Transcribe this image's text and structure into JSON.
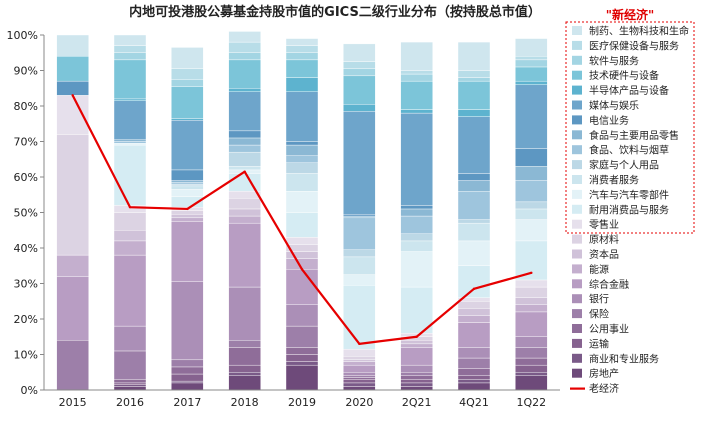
{
  "chart_data": {
    "type": "bar",
    "stacked": true,
    "title": "内地可投港股公募基金持股市值的GICS二级行业分布（按持股总市值）",
    "categories": [
      "2015",
      "2016",
      "2017",
      "2018",
      "2019",
      "2020",
      "2Q21",
      "4Q21",
      "1Q22"
    ],
    "ylim": [
      0,
      100
    ],
    "yticks": [
      "0%",
      "10%",
      "20%",
      "30%",
      "40%",
      "50%",
      "60%",
      "70%",
      "80%",
      "90%",
      "100%"
    ],
    "grid": false,
    "legend_position": "right",
    "highlight_label": "\"新经济\"",
    "series": [
      {
        "name": "房地产",
        "color": "#6e4a7a",
        "values": [
          0,
          1,
          2,
          4,
          7,
          1,
          1,
          2,
          4
        ]
      },
      {
        "name": "商业和专业服务",
        "color": "#7a5a88",
        "values": [
          0,
          0.5,
          0.5,
          1,
          1,
          1,
          1,
          1,
          1
        ]
      },
      {
        "name": "运输",
        "color": "#86628f",
        "values": [
          0,
          0.5,
          2,
          2,
          2,
          1,
          1,
          1,
          2
        ]
      },
      {
        "name": "公用事业",
        "color": "#8f6d99",
        "values": [
          0,
          1,
          2,
          5,
          2,
          0.5,
          1,
          2,
          2
        ]
      },
      {
        "name": "保险",
        "color": "#9d7fa9",
        "values": [
          14,
          8,
          2,
          2,
          6,
          0.5,
          1,
          3,
          3
        ]
      },
      {
        "name": "银行",
        "color": "#ab8fb7",
        "values": [
          0,
          7,
          22,
          15,
          6,
          1,
          2,
          3,
          3
        ]
      },
      {
        "name": "综合金融",
        "color": "#b89dc3",
        "values": [
          18,
          20,
          17,
          18,
          10,
          2,
          5,
          7,
          7
        ]
      },
      {
        "name": "能源",
        "color": "#c4afce",
        "values": [
          6,
          4,
          1,
          2,
          3,
          1,
          1,
          2,
          2
        ]
      },
      {
        "name": "资本品",
        "color": "#d0c2d9",
        "values": [
          0,
          3,
          1,
          2,
          2,
          0.5,
          1,
          2,
          2
        ]
      },
      {
        "name": "原材料",
        "color": "#dcd3e3",
        "values": [
          34,
          5,
          1,
          3,
          2,
          1,
          1,
          2,
          3
        ]
      },
      {
        "name": "零售业",
        "color": "#e6e0ec",
        "values": [
          11,
          2,
          1,
          2,
          2,
          2,
          1,
          1,
          2
        ]
      },
      {
        "name": "耐用消费品与服务",
        "color": "#d5ecf3",
        "values": [
          0,
          17,
          3,
          5,
          7,
          18,
          13,
          9,
          11
        ]
      },
      {
        "name": "汽车与汽车零部件",
        "color": "#e3f2f7",
        "values": [
          0,
          0.5,
          2,
          1,
          6,
          3,
          10,
          7,
          6
        ]
      },
      {
        "name": "消费者服务",
        "color": "#cce5ee",
        "values": [
          0,
          0,
          1,
          1,
          5,
          5,
          3,
          5,
          3
        ]
      },
      {
        "name": "家庭与个人用品",
        "color": "#bcd8e6",
        "values": [
          0,
          0,
          0.5,
          4,
          3,
          2,
          2,
          1,
          2
        ]
      },
      {
        "name": "食品、饮料与烟草",
        "color": "#9ec5dd",
        "values": [
          0,
          0.5,
          0.5,
          2,
          2,
          9,
          5,
          8,
          6
        ]
      },
      {
        "name": "食品与主要用品零售",
        "color": "#8bb8d4",
        "values": [
          0,
          0.5,
          0.5,
          2,
          3,
          0.5,
          2,
          3,
          4
        ]
      },
      {
        "name": "电信业务",
        "color": "#5d97c2",
        "values": [
          4,
          0,
          3,
          2,
          1,
          0.5,
          1,
          2,
          5
        ]
      },
      {
        "name": "媒体与娱乐",
        "color": "#6ea5cb",
        "values": [
          0,
          11,
          14,
          11,
          14,
          29,
          26,
          16,
          18
        ]
      },
      {
        "name": "半导体产品与设备",
        "color": "#5db3cf",
        "values": [
          0,
          0.5,
          0.5,
          1,
          4,
          2,
          1,
          2,
          1
        ]
      },
      {
        "name": "技术硬件与设备",
        "color": "#7cc5d9",
        "values": [
          7,
          11,
          9,
          8,
          5,
          8,
          8,
          8,
          4
        ]
      },
      {
        "name": "软件与服务",
        "color": "#a3d5e3",
        "values": [
          0,
          2,
          2,
          2,
          2,
          2,
          2,
          1,
          2
        ]
      },
      {
        "name": "医疗保健设备与服务",
        "color": "#b8dde8",
        "values": [
          0,
          2,
          3,
          3,
          2,
          2,
          1,
          2,
          1
        ]
      },
      {
        "name": "制药、生物科技和生命",
        "color": "#cfe6ee",
        "values": [
          6,
          3,
          6,
          3,
          2,
          5,
          8,
          8,
          5
        ]
      },
      {
        "name": "老经济",
        "type": "line",
        "color": "#e60000",
        "values": [
          83,
          51.5,
          51,
          61.5,
          34,
          13,
          15,
          28.5,
          33
        ]
      }
    ]
  }
}
